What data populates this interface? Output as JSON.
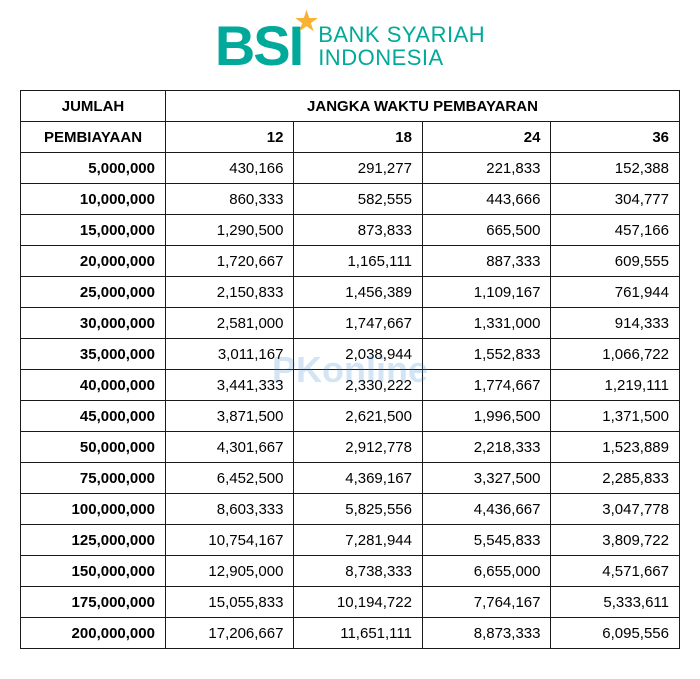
{
  "brand": {
    "color_primary": "#00a99a",
    "color_star": "#f9b233",
    "mark": "BSI",
    "line1": "BANK SYARIAH",
    "line2": "INDONESIA"
  },
  "watermark": {
    "text": "PKonline",
    "color": "#3a8ad6"
  },
  "table": {
    "header_main_left": "JUMLAH",
    "header_main_right": "JANGKA WAKTU PEMBAYARAN",
    "header_sub_left": "PEMBIAYAAN",
    "periods": [
      "12",
      "18",
      "24",
      "36"
    ],
    "rows": [
      {
        "amount": "5,000,000",
        "v": [
          "430,166",
          "291,277",
          "221,833",
          "152,388"
        ]
      },
      {
        "amount": "10,000,000",
        "v": [
          "860,333",
          "582,555",
          "443,666",
          "304,777"
        ]
      },
      {
        "amount": "15,000,000",
        "v": [
          "1,290,500",
          "873,833",
          "665,500",
          "457,166"
        ]
      },
      {
        "amount": "20,000,000",
        "v": [
          "1,720,667",
          "1,165,111",
          "887,333",
          "609,555"
        ]
      },
      {
        "amount": "25,000,000",
        "v": [
          "2,150,833",
          "1,456,389",
          "1,109,167",
          "761,944"
        ]
      },
      {
        "amount": "30,000,000",
        "v": [
          "2,581,000",
          "1,747,667",
          "1,331,000",
          "914,333"
        ]
      },
      {
        "amount": "35,000,000",
        "v": [
          "3,011,167",
          "2,038,944",
          "1,552,833",
          "1,066,722"
        ]
      },
      {
        "amount": "40,000,000",
        "v": [
          "3,441,333",
          "2,330,222",
          "1,774,667",
          "1,219,111"
        ]
      },
      {
        "amount": "45,000,000",
        "v": [
          "3,871,500",
          "2,621,500",
          "1,996,500",
          "1,371,500"
        ]
      },
      {
        "amount": "50,000,000",
        "v": [
          "4,301,667",
          "2,912,778",
          "2,218,333",
          "1,523,889"
        ]
      },
      {
        "amount": "75,000,000",
        "v": [
          "6,452,500",
          "4,369,167",
          "3,327,500",
          "2,285,833"
        ]
      },
      {
        "amount": "100,000,000",
        "v": [
          "8,603,333",
          "5,825,556",
          "4,436,667",
          "3,047,778"
        ]
      },
      {
        "amount": "125,000,000",
        "v": [
          "10,754,167",
          "7,281,944",
          "5,545,833",
          "3,809,722"
        ]
      },
      {
        "amount": "150,000,000",
        "v": [
          "12,905,000",
          "8,738,333",
          "6,655,000",
          "4,571,667"
        ]
      },
      {
        "amount": "175,000,000",
        "v": [
          "15,055,833",
          "10,194,722",
          "7,764,167",
          "5,333,611"
        ]
      },
      {
        "amount": "200,000,000",
        "v": [
          "17,206,667",
          "11,651,111",
          "8,873,333",
          "6,095,556"
        ]
      }
    ],
    "border_color": "#1a1a1a",
    "text_color": "#1a1a1a",
    "font_size": 15
  }
}
